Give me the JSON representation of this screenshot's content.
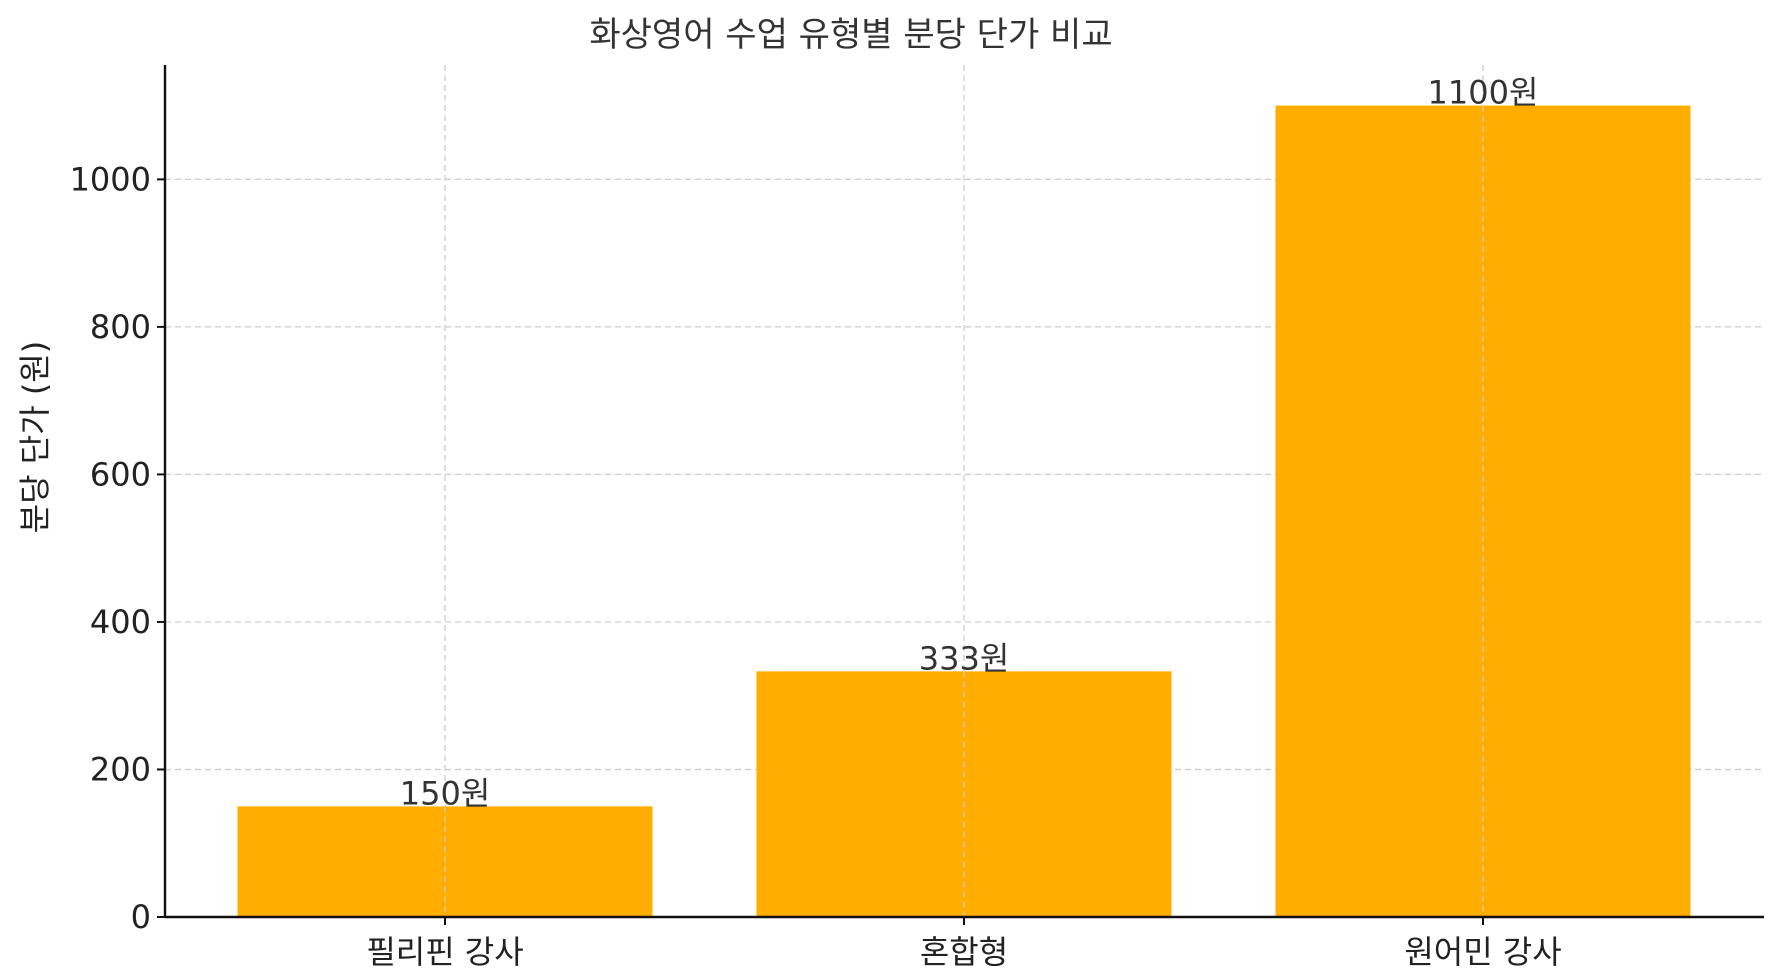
{
  "chart_data": {
    "type": "bar",
    "title": "화상영어 수업 유형별 분당 단가 비교",
    "xlabel": "",
    "ylabel": "분당 단가 (원)",
    "categories": [
      "필리핀 강사",
      "혼합형",
      "원어민 강사"
    ],
    "values": [
      150,
      333,
      1100
    ],
    "data_labels": [
      "150원",
      "333원",
      "1100원"
    ],
    "ylim": [
      0,
      1155
    ],
    "yticks": [
      0,
      200,
      400,
      600,
      800,
      1000
    ],
    "grid": true,
    "bar_color": "#FFAE00"
  }
}
